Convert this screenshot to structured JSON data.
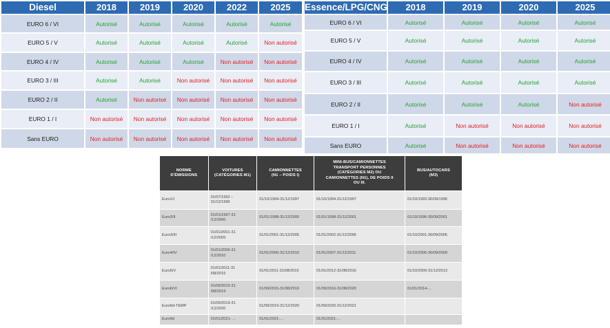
{
  "diesel": {
    "header": [
      "Diesel",
      "2018",
      "2019",
      "2020",
      "2022",
      "2025"
    ],
    "rows": [
      {
        "label": "EURO 6 / VI",
        "values": [
          "Autorisé",
          "Autorisé",
          "Autorisé",
          "Autorisé",
          "Autorisé"
        ]
      },
      {
        "label": "EURO 5 / V",
        "values": [
          "Autorisé",
          "Autorisé",
          "Autorisé",
          "Autorisé",
          "Non autorisé"
        ]
      },
      {
        "label": "EURO 4 / IV",
        "values": [
          "Autorisé",
          "Autorisé",
          "Autorisé",
          "Non autorisé",
          "Non autorisé"
        ]
      },
      {
        "label": "EURO 3 / III",
        "values": [
          "Autorisé",
          "Autorisé",
          "Non autorisé",
          "Non autorisé",
          "Non autorisé"
        ]
      },
      {
        "label": "EURO 2 / II",
        "values": [
          "Autorisé",
          "Non autorisé",
          "Non autorisé",
          "Non autorisé",
          "Non autorisé"
        ]
      },
      {
        "label": "EURO 1 / I",
        "values": [
          "Non autorisé",
          "Non autorisé",
          "Non autorisé",
          "Non autorisé",
          "Non autorisé"
        ]
      },
      {
        "label": "Sans EURO",
        "values": [
          "Non autorisé",
          "Non autorisé",
          "Non autorisé",
          "Non autorisé",
          "Non autorisé"
        ]
      }
    ]
  },
  "essence": {
    "header": [
      "Essence/LPG/CNG",
      "2018",
      "2019",
      "2020",
      "2025"
    ],
    "rows": [
      {
        "label": "EURO 6 / VI",
        "values": [
          "Autorisé",
          "Autorisé",
          "Autorisé",
          "Autorisé"
        ]
      },
      {
        "label": "EURO 5 / V",
        "values": [
          "Autorisé",
          "Autorisé",
          "Autorisé",
          "Autorisé"
        ]
      },
      {
        "label": "EURO 4 / IV",
        "values": [
          "Autorisé",
          "Autorisé",
          "Autorisé",
          "Autorisé"
        ]
      },
      {
        "label": "EURO 3 / III",
        "values": [
          "Autorisé",
          "Autorisé",
          "Autorisé",
          "Autorisé"
        ]
      },
      {
        "label": "EURO 2 / II",
        "values": [
          "Autorisé",
          "Autorisé",
          "Autorisé",
          "Non autorisé"
        ]
      },
      {
        "label": "EURO 1 / I",
        "values": [
          "Autorisé",
          "Non autorisé",
          "Non autorisé",
          "Non autorisé"
        ]
      },
      {
        "label": "Sans EURO",
        "values": [
          "Autorisé",
          "Non autorisé",
          "Non autorisé",
          "Non autorisé"
        ]
      }
    ]
  },
  "euro_norms": {
    "headers": [
      [
        "Norme",
        "d'émissions"
      ],
      [
        "Voitures",
        "(catégories M1)"
      ],
      [
        "Camionnettes",
        "(N1 – poids I)"
      ],
      [
        "Mini-bus/camionnettes",
        "transport personnes",
        "(catégories M2) ou",
        "camionnettes (N1), de poids II",
        "ou III."
      ],
      [
        "Bus/autocars",
        "(M3)"
      ]
    ],
    "rows": [
      {
        "cells": [
          [
            "Euro1/I"
          ],
          [
            "01/07/1992 –",
            "31/12/1996"
          ],
          [
            "01/10/1994-31/12/1997"
          ],
          [
            "01/10/1994-31/12/1997"
          ],
          [
            "01/10/1993-30/09/1996"
          ]
        ]
      },
      {
        "cells": [
          [
            "Euro2/II"
          ],
          [
            "01/01/1997-31",
            "/12/2000"
          ],
          [
            "01/01/1998-31/12/2000"
          ],
          [
            "01/01/1998-31/12/2001"
          ],
          [
            "01/10/1996-30/09/2001"
          ]
        ]
      },
      {
        "cells": [
          [
            "Euro3/III"
          ],
          [
            "01/01/2001-31",
            "/12/2005"
          ],
          [
            "01/01/2001-31/12/2005"
          ],
          [
            "01/01/2002-31/12/2006"
          ],
          [
            "01/10/2001-30/09/2006"
          ]
        ]
      },
      {
        "cells": [
          [
            "Euro4/IV"
          ],
          [
            "01/01/2006-31",
            "/12/2010"
          ],
          [
            "01/01/2006-31/12/2010"
          ],
          [
            "01/01/2007-31/12/2011"
          ],
          [
            "01/10/2006-30/09/2009"
          ]
        ]
      },
      {
        "cells": [
          [
            "Euro5/V"
          ],
          [
            "01/01/2011-31",
            "/08/2015"
          ],
          [
            "01/01/2011-31/08/2015"
          ],
          [
            "01/01/2012-31/08/2016"
          ],
          [
            "01/10/2009-31/12/2013"
          ]
        ]
      },
      {
        "cells": [
          [
            "Euro6/VI"
          ],
          [
            "01/09/2015-31",
            "/08/2019"
          ],
          [
            "01/09/2015-31/08/2019"
          ],
          [
            "01/09/2016-31/08/2020"
          ],
          [
            "01/01/2014-…"
          ]
        ]
      },
      {
        "cells": [
          [
            "Euro6d-TEMP"
          ],
          [
            "01/09/2019-31",
            "/12/2020"
          ],
          [
            "01/09/2019-31/12/2020"
          ],
          [
            "01/09/2020-31/12/2021"
          ],
          [
            ""
          ]
        ]
      },
      {
        "cells": [
          [
            "Euro6d"
          ],
          [
            "01/01/2021- …"
          ],
          [
            "01/01/2021-…"
          ],
          [
            "01/01/2021-…"
          ],
          [
            ""
          ]
        ]
      }
    ]
  },
  "colors": {
    "header_blue": "#2e6bb3",
    "row_dark": "#cfd8e8",
    "row_light": "#e8edf6",
    "allowed_green": "#25a233",
    "denied_red": "#e02020",
    "norm_header": "#3d3d3d"
  }
}
